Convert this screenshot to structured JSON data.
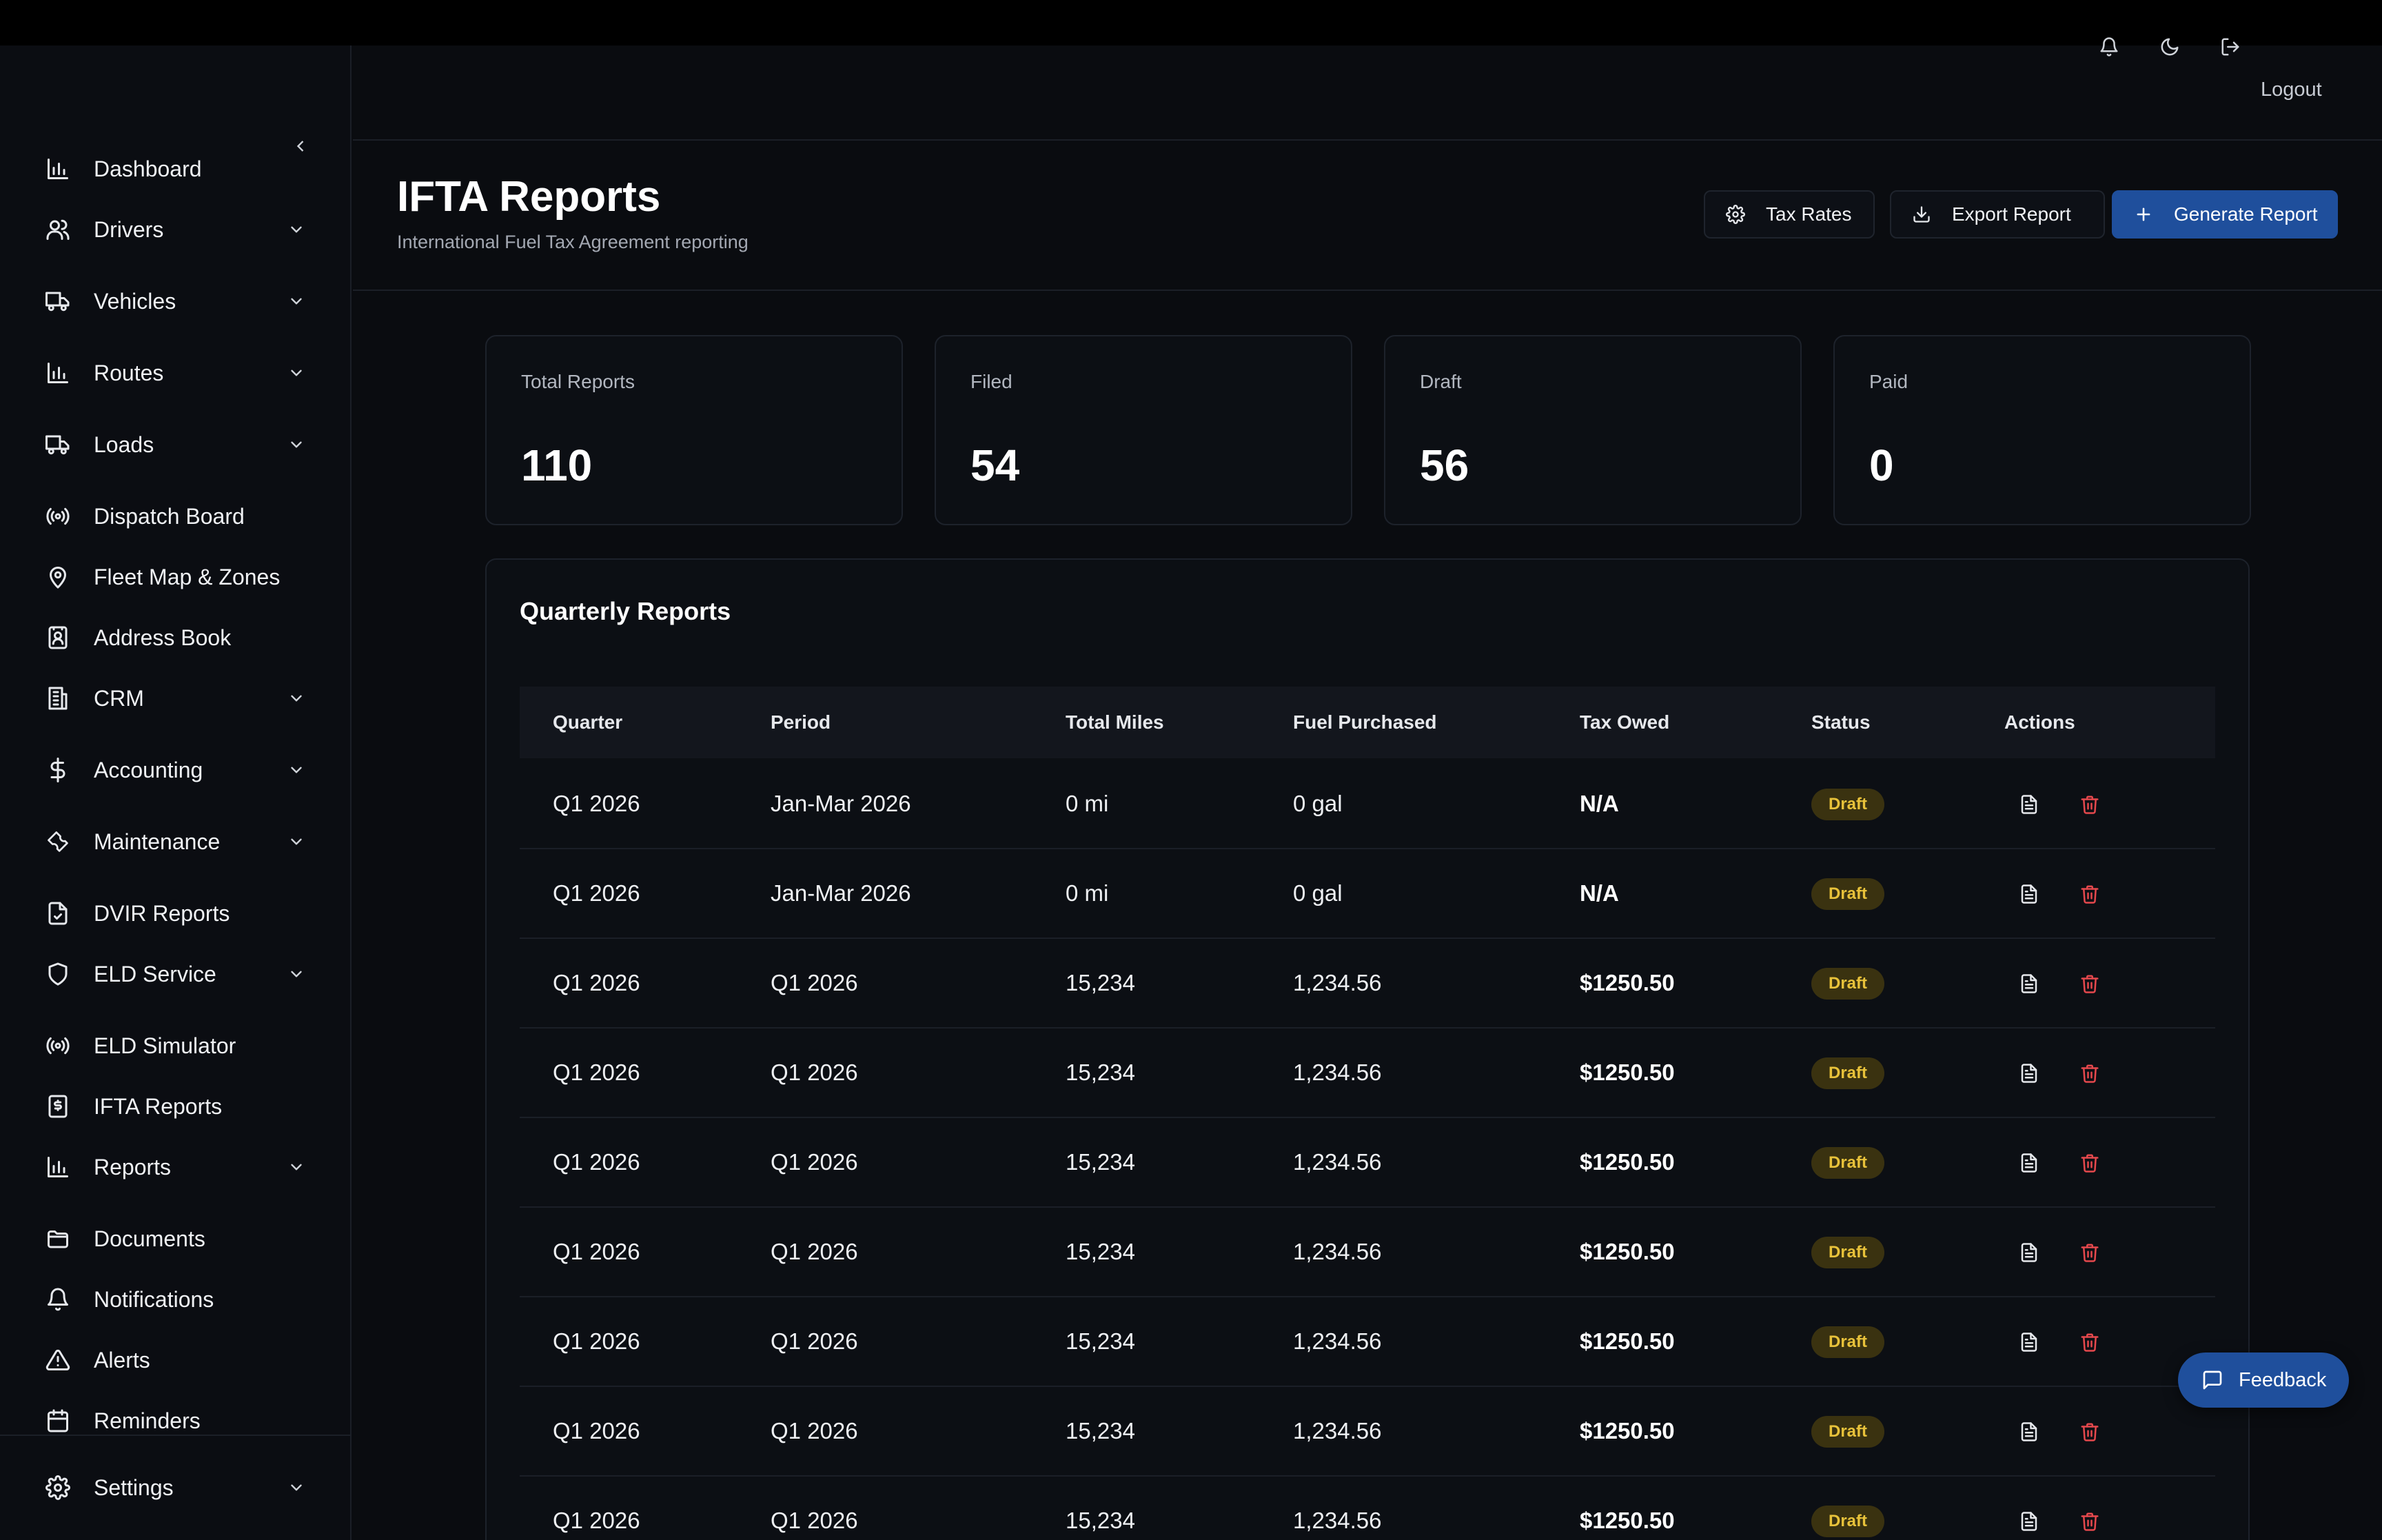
{
  "header": {
    "logout_label": "Logout"
  },
  "sidebar": {
    "items": [
      {
        "label": "Dashboard",
        "icon": "bar-chart-icon",
        "has_submenu": false
      },
      {
        "label": "Drivers",
        "icon": "users-icon",
        "has_submenu": true
      },
      {
        "label": "Vehicles",
        "icon": "truck-icon",
        "has_submenu": true
      },
      {
        "label": "Routes",
        "icon": "bar-chart-icon",
        "has_submenu": true
      },
      {
        "label": "Loads",
        "icon": "truck-icon",
        "has_submenu": true
      },
      {
        "label": "Dispatch Board",
        "icon": "radio-icon",
        "has_submenu": false
      },
      {
        "label": "Fleet Map & Zones",
        "icon": "map-pin-icon",
        "has_submenu": false
      },
      {
        "label": "Address Book",
        "icon": "contact-book-icon",
        "has_submenu": false
      },
      {
        "label": "CRM",
        "icon": "building-icon",
        "has_submenu": true
      },
      {
        "label": "Accounting",
        "icon": "dollar-icon",
        "has_submenu": true
      },
      {
        "label": "Maintenance",
        "icon": "wrench-icon",
        "has_submenu": true
      },
      {
        "label": "DVIR Reports",
        "icon": "file-check-icon",
        "has_submenu": false
      },
      {
        "label": "ELD Service",
        "icon": "shield-icon",
        "has_submenu": true
      },
      {
        "label": "ELD Simulator",
        "icon": "radio-icon",
        "has_submenu": false
      },
      {
        "label": "IFTA Reports",
        "icon": "receipt-icon",
        "has_submenu": false
      },
      {
        "label": "Reports",
        "icon": "bar-chart-icon",
        "has_submenu": true
      },
      {
        "label": "Documents",
        "icon": "folder-icon",
        "has_submenu": false
      },
      {
        "label": "Notifications",
        "icon": "bell-icon",
        "has_submenu": false
      },
      {
        "label": "Alerts",
        "icon": "alert-triangle-icon",
        "has_submenu": false
      },
      {
        "label": "Reminders",
        "icon": "calendar-icon",
        "has_submenu": false
      }
    ],
    "settings": {
      "label": "Settings",
      "icon": "gear-icon",
      "has_submenu": true
    }
  },
  "page": {
    "title": "IFTA Reports",
    "subtitle": "International Fuel Tax Agreement reporting",
    "buttons": {
      "tax_rates": "Tax Rates",
      "export_report": "Export Report",
      "generate_report": "Generate Report"
    }
  },
  "stats": [
    {
      "label": "Total Reports",
      "value": "110"
    },
    {
      "label": "Filed",
      "value": "54"
    },
    {
      "label": "Draft",
      "value": "56"
    },
    {
      "label": "Paid",
      "value": "0"
    }
  ],
  "table": {
    "title": "Quarterly Reports",
    "columns": [
      "Quarter",
      "Period",
      "Total Miles",
      "Fuel Purchased",
      "Tax Owed",
      "Status",
      "Actions"
    ],
    "rows": [
      {
        "quarter": "Q1 2026",
        "period": "Jan-Mar 2026",
        "miles": "0 mi",
        "fuel": "0 gal",
        "tax": "N/A",
        "status": "Draft"
      },
      {
        "quarter": "Q1 2026",
        "period": "Jan-Mar 2026",
        "miles": "0 mi",
        "fuel": "0 gal",
        "tax": "N/A",
        "status": "Draft"
      },
      {
        "quarter": "Q1 2026",
        "period": "Q1 2026",
        "miles": "15,234",
        "fuel": "1,234.56",
        "tax": "$1250.50",
        "status": "Draft"
      },
      {
        "quarter": "Q1 2026",
        "period": "Q1 2026",
        "miles": "15,234",
        "fuel": "1,234.56",
        "tax": "$1250.50",
        "status": "Draft"
      },
      {
        "quarter": "Q1 2026",
        "period": "Q1 2026",
        "miles": "15,234",
        "fuel": "1,234.56",
        "tax": "$1250.50",
        "status": "Draft"
      },
      {
        "quarter": "Q1 2026",
        "period": "Q1 2026",
        "miles": "15,234",
        "fuel": "1,234.56",
        "tax": "$1250.50",
        "status": "Draft"
      },
      {
        "quarter": "Q1 2026",
        "period": "Q1 2026",
        "miles": "15,234",
        "fuel": "1,234.56",
        "tax": "$1250.50",
        "status": "Draft"
      },
      {
        "quarter": "Q1 2026",
        "period": "Q1 2026",
        "miles": "15,234",
        "fuel": "1,234.56",
        "tax": "$1250.50",
        "status": "Draft"
      },
      {
        "quarter": "Q1 2026",
        "period": "Q1 2026",
        "miles": "15,234",
        "fuel": "1,234.56",
        "tax": "$1250.50",
        "status": "Draft"
      }
    ]
  },
  "feedback": {
    "label": "Feedback"
  },
  "colors": {
    "background": "#0a0c10",
    "primary": "#1f4f9c",
    "draft_badge_bg": "#3a3210",
    "draft_badge_text": "#e8c23a",
    "delete": "#e5484d"
  }
}
